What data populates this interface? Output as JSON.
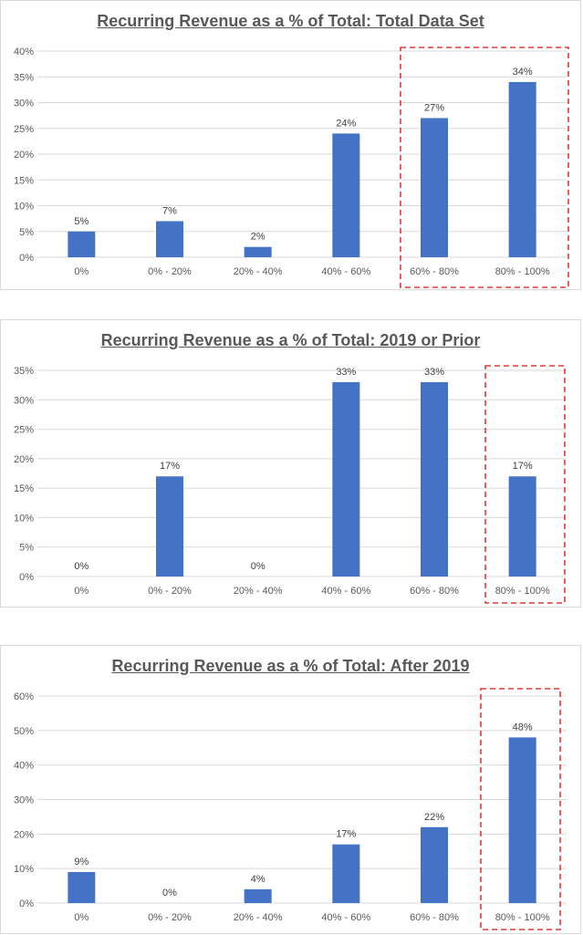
{
  "style": {
    "bar_color": "#4472C4",
    "highlight_color": "#E53935",
    "grid_color": "#D9D9D9",
    "text_color": "#595959"
  },
  "chart_data": [
    {
      "type": "bar",
      "title": "Recurring Revenue as a % of Total: Total Data Set",
      "categories": [
        "0%",
        "0% - 20%",
        "20% - 40%",
        "40% - 60%",
        "60% - 80%",
        "80% - 100%"
      ],
      "values": [
        0.05,
        0.07,
        0.02,
        0.24,
        0.27,
        0.34
      ],
      "value_labels": [
        "5%",
        "7%",
        "2%",
        "24%",
        "27%",
        "34%"
      ],
      "ylim": [
        0,
        0.4
      ],
      "yticks": [
        0,
        0.05,
        0.1,
        0.15,
        0.2,
        0.25,
        0.3,
        0.35,
        0.4
      ],
      "ytick_labels": [
        "0%",
        "5%",
        "10%",
        "15%",
        "20%",
        "25%",
        "30%",
        "35%",
        "40%"
      ],
      "grid": true,
      "legend": "none",
      "highlighted_categories": [
        "60% - 80%",
        "80% - 100%"
      ]
    },
    {
      "type": "bar",
      "title": "Recurring Revenue as a % of Total: 2019 or Prior",
      "categories": [
        "0%",
        "0% - 20%",
        "20% - 40%",
        "40% - 60%",
        "60% - 80%",
        "80% - 100%"
      ],
      "values": [
        0,
        0.17,
        0,
        0.33,
        0.33,
        0.17
      ],
      "value_labels": [
        "0%",
        "17%",
        "0%",
        "33%",
        "33%",
        "17%"
      ],
      "ylim": [
        0,
        0.35
      ],
      "yticks": [
        0,
        0.05,
        0.1,
        0.15,
        0.2,
        0.25,
        0.3,
        0.35
      ],
      "ytick_labels": [
        "0%",
        "5%",
        "10%",
        "15%",
        "20%",
        "25%",
        "30%",
        "35%"
      ],
      "grid": true,
      "legend": "none",
      "highlighted_categories": [
        "80% - 100%"
      ]
    },
    {
      "type": "bar",
      "title": "Recurring Revenue as a % of Total: After 2019",
      "categories": [
        "0%",
        "0% - 20%",
        "20% - 40%",
        "40% - 60%",
        "60% - 80%",
        "80% - 100%"
      ],
      "values": [
        0.09,
        0,
        0.04,
        0.17,
        0.22,
        0.48
      ],
      "value_labels": [
        "9%",
        "0%",
        "4%",
        "17%",
        "22%",
        "48%"
      ],
      "ylim": [
        0,
        0.6
      ],
      "yticks": [
        0,
        0.1,
        0.2,
        0.3,
        0.4,
        0.5,
        0.6
      ],
      "ytick_labels": [
        "0%",
        "10%",
        "20%",
        "30%",
        "40%",
        "50%",
        "60%"
      ],
      "grid": true,
      "legend": "none",
      "highlighted_categories": [
        "80% - 100%"
      ]
    }
  ]
}
